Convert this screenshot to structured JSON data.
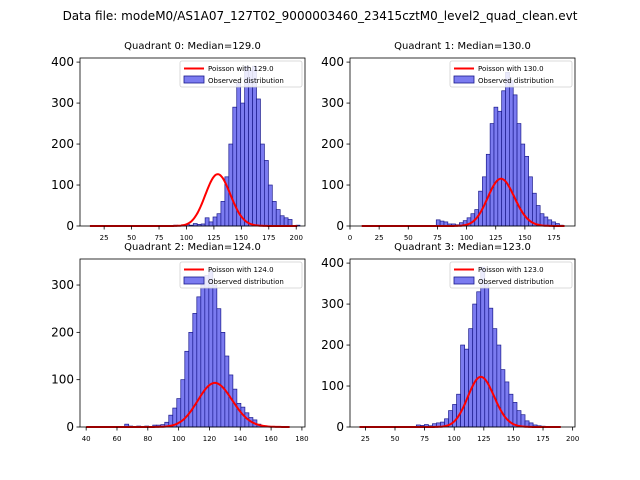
{
  "suptitle": "Data file: modeM0/AS1A07_127T02_9000003460_23415cztM0_level2_quad_clean.evt",
  "colors": {
    "bar_fill": "#7b7bf0",
    "bar_edge": "#1a1a8c",
    "curve": "#ff0000",
    "axis": "#000000"
  },
  "chart_data": [
    {
      "type": "bar",
      "title": "Quadrant 0: Median=129.0",
      "xlim": [
        3,
        208
      ],
      "ylim": [
        0,
        410
      ],
      "xticks": [
        25,
        50,
        75,
        100,
        125,
        150,
        175,
        200
      ],
      "yticks": [
        0,
        100,
        200,
        300,
        400
      ],
      "legend": {
        "position": "top-right",
        "entries": [
          "Poisson with 129.0",
          "Observed distribution"
        ]
      },
      "bins": {
        "start": 81,
        "width": 3.6,
        "values": [
          1,
          0,
          2,
          1,
          3,
          4,
          2,
          6,
          4,
          5,
          20,
          10,
          22,
          30,
          60,
          120,
          200,
          290,
          350,
          300,
          390,
          380,
          390,
          310,
          200,
          160,
          100,
          60,
          40,
          25,
          20,
          16,
          1,
          2
        ]
      },
      "poisson": {
        "lambda": 129.0,
        "scale": 3.6,
        "x_range": [
          12,
          201
        ]
      }
    },
    {
      "type": "bar",
      "title": "Quadrant 1: Median=130.0",
      "xlim": [
        0,
        193
      ],
      "ylim": [
        0,
        410
      ],
      "xticks": [
        0,
        25,
        50,
        75,
        100,
        125,
        150,
        175
      ],
      "yticks": [
        0,
        100,
        200,
        300,
        400
      ],
      "legend": {
        "position": "top-right",
        "entries": [
          "Poisson with 130.0",
          "Observed distribution"
        ]
      },
      "bins": {
        "start": 74,
        "width": 3.3,
        "values": [
          15,
          12,
          10,
          5,
          5,
          3,
          8,
          13,
          20,
          30,
          40,
          85,
          120,
          175,
          250,
          290,
          280,
          330,
          375,
          355,
          320,
          250,
          200,
          170,
          120,
          80,
          50,
          30,
          22,
          15,
          10,
          6,
          2
        ]
      },
      "poisson": {
        "lambda": 130.0,
        "scale": 3.3,
        "x_range": [
          10,
          184
        ]
      }
    },
    {
      "type": "bar",
      "title": "Quadrant 2: Median=124.0",
      "xlim": [
        36,
        182
      ],
      "ylim": [
        0,
        355
      ],
      "xticks": [
        40,
        60,
        80,
        100,
        120,
        140,
        160,
        180
      ],
      "yticks": [
        0,
        100,
        200,
        300
      ],
      "legend": {
        "position": "top-right",
        "entries": [
          "Poisson with 124.0",
          "Observed distribution"
        ]
      },
      "bins": {
        "start": 65,
        "width": 2.6,
        "values": [
          6,
          2,
          1,
          2,
          0,
          2,
          1,
          4,
          4,
          5,
          10,
          25,
          40,
          60,
          100,
          160,
          200,
          240,
          275,
          300,
          320,
          330,
          300,
          250,
          200,
          150,
          110,
          80,
          50,
          42,
          30,
          20,
          15,
          6,
          3,
          2,
          1
        ]
      },
      "poisson": {
        "lambda": 124.0,
        "scale": 2.6,
        "x_range": [
          40,
          172
        ]
      }
    },
    {
      "type": "bar",
      "title": "Quadrant 3: Median=123.0",
      "xlim": [
        12,
        202
      ],
      "ylim": [
        0,
        410
      ],
      "xticks": [
        25,
        50,
        75,
        100,
        125,
        150,
        175,
        200
      ],
      "yticks": [
        0,
        100,
        200,
        300,
        400
      ],
      "legend": {
        "position": "top-right",
        "entries": [
          "Poisson with 123.0",
          "Observed distribution"
        ]
      },
      "bins": {
        "start": 68,
        "width": 3.4,
        "values": [
          5,
          4,
          6,
          3,
          8,
          10,
          12,
          20,
          40,
          55,
          80,
          200,
          190,
          240,
          300,
          330,
          390,
          350,
          290,
          240,
          200,
          140,
          110,
          80,
          60,
          40,
          30,
          15,
          10,
          5,
          3,
          2
        ]
      },
      "poisson": {
        "lambda": 123.0,
        "scale": 3.4,
        "x_range": [
          20,
          190
        ]
      }
    }
  ]
}
